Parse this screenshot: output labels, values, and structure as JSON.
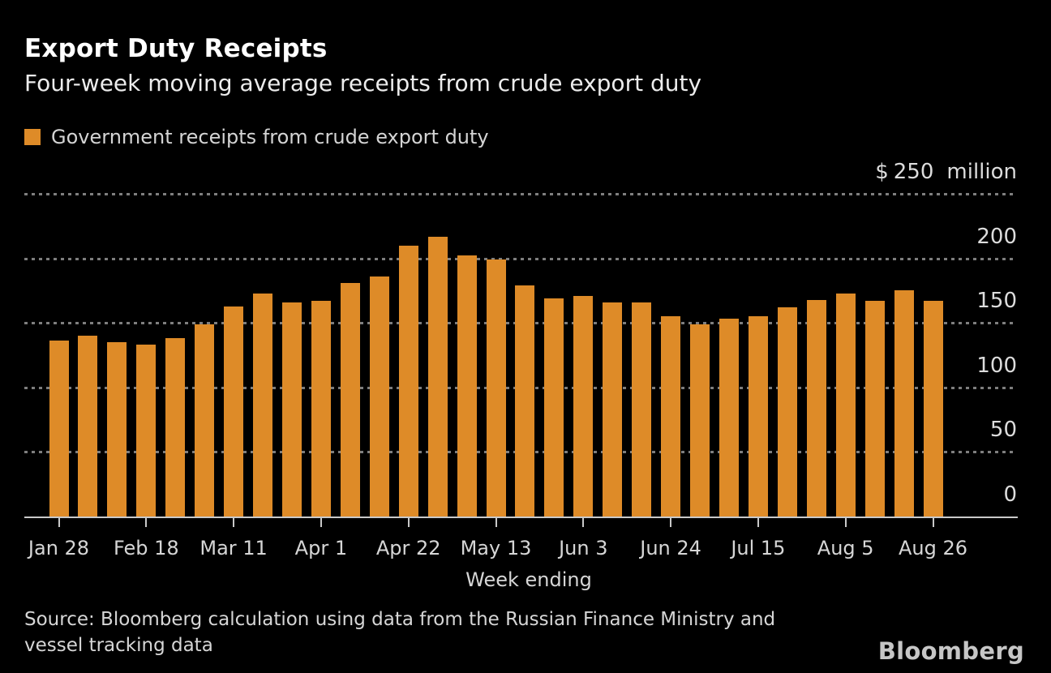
{
  "header": {
    "title": "Export Duty Receipts",
    "subtitle": "Four-week moving average receipts from crude export duty"
  },
  "legend": {
    "label": "Government receipts from crude export duty"
  },
  "chart_data": {
    "type": "bar",
    "title": "Export Duty Receipts",
    "subtitle": "Four-week moving average receipts from crude export duty",
    "series_name": "Government receipts from crude export duty",
    "xlabel": "Week ending",
    "ylabel": "$ million",
    "ylim": [
      0,
      250
    ],
    "grid": "horizontal-dotted",
    "legend_position": "top-left",
    "bar_color": "#DE8B28",
    "y_axis": {
      "max": 250,
      "ticks": [
        250,
        200,
        150,
        100,
        50,
        0
      ],
      "top_label": {
        "currency": "$",
        "value": "250",
        "unit": "million"
      }
    },
    "x_tick_step": 3,
    "x_tick_labels": [
      "Jan 28",
      "Feb 18",
      "Mar 11",
      "Apr 1",
      "Apr 22",
      "May 13",
      "Jun 3",
      "Jun 24",
      "Jul 15",
      "Aug 5",
      "Aug 26"
    ],
    "categories": [
      "Jan 28",
      "Feb 4",
      "Feb 11",
      "Feb 18",
      "Feb 25",
      "Mar 4",
      "Mar 11",
      "Mar 18",
      "Mar 25",
      "Apr 1",
      "Apr 8",
      "Apr 15",
      "Apr 22",
      "Apr 29",
      "May 6",
      "May 13",
      "May 20",
      "May 27",
      "Jun 3",
      "Jun 10",
      "Jun 17",
      "Jun 24",
      "Jul 1",
      "Jul 8",
      "Jul 15",
      "Jul 22",
      "Jul 29",
      "Aug 5",
      "Aug 12",
      "Aug 19",
      "Aug 26"
    ],
    "values": [
      136,
      140,
      135,
      133,
      138,
      149,
      163,
      173,
      166,
      167,
      181,
      186,
      210,
      217,
      202,
      199,
      179,
      169,
      171,
      166,
      166,
      155,
      149,
      153,
      155,
      162,
      168,
      173,
      167,
      175,
      167
    ]
  },
  "footer": {
    "source_line1": "Source: Bloomberg calculation using data from the Russian Finance Ministry and",
    "source_line2": "vessel tracking data",
    "brand": "Bloomberg"
  },
  "colors": {
    "background": "#000000",
    "bar": "#DE8B28",
    "title_text": "#FFFFFF",
    "body_text": "#D6D6D6",
    "axis": "#C9C9C9",
    "gridline": "#7E7E7E"
  }
}
